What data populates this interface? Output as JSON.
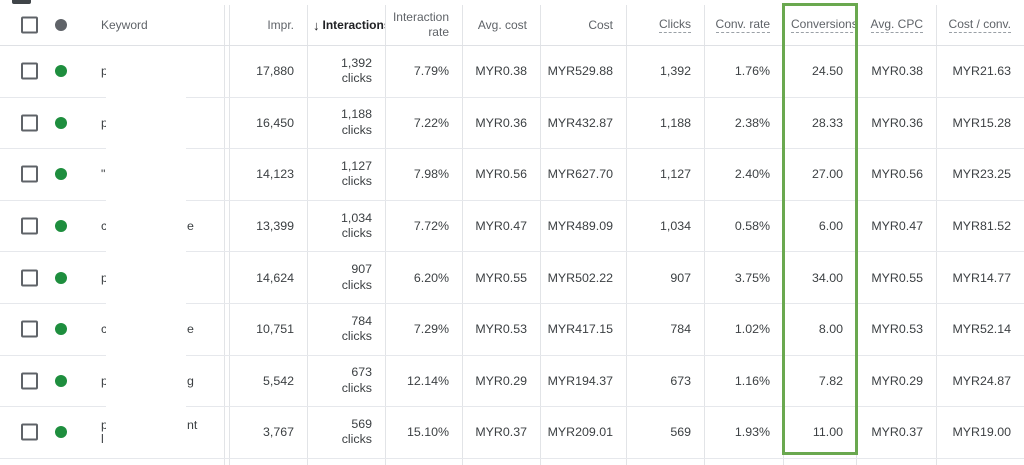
{
  "table": {
    "sorted_by": "Interactions",
    "sort_direction": "descending",
    "highlighted_column": "Conversions",
    "headers": {
      "keyword": "Keyword",
      "impressions": "Impr.",
      "sort_arrow": "↓",
      "interactions": "Interactions",
      "interaction_rate": "Interaction rate",
      "avg_cost": "Avg. cost",
      "cost": "Cost",
      "clicks": "Clicks",
      "conv_rate": "Conv. rate",
      "conversions": "Conversions",
      "avg_cpc": "Avg. CPC",
      "cost_per_conv": "Cost / conv."
    },
    "rows": [
      {
        "status": "enabled",
        "kw_left": "p",
        "kw_right": "",
        "impr": "17,880",
        "interactions": "1,392",
        "interactions_unit": "clicks",
        "inter_rate": "7.79%",
        "avg_cost": "MYR0.38",
        "cost": "MYR529.88",
        "clicks": "1,392",
        "conv_rate": "1.76%",
        "conversions": "24.50",
        "avg_cpc": "MYR0.38",
        "cost_conv": "MYR21.63"
      },
      {
        "status": "enabled",
        "kw_left": "p",
        "kw_right": "",
        "impr": "16,450",
        "interactions": "1,188",
        "interactions_unit": "clicks",
        "inter_rate": "7.22%",
        "avg_cost": "MYR0.36",
        "cost": "MYR432.87",
        "clicks": "1,188",
        "conv_rate": "2.38%",
        "conversions": "28.33",
        "avg_cpc": "MYR0.36",
        "cost_conv": "MYR15.28"
      },
      {
        "status": "enabled",
        "kw_left": "\"",
        "kw_right": "",
        "impr": "14,123",
        "interactions": "1,127",
        "interactions_unit": "clicks",
        "inter_rate": "7.98%",
        "avg_cost": "MYR0.56",
        "cost": "MYR627.70",
        "clicks": "1,127",
        "conv_rate": "2.40%",
        "conversions": "27.00",
        "avg_cpc": "MYR0.56",
        "cost_conv": "MYR23.25"
      },
      {
        "status": "enabled",
        "kw_left": "c",
        "kw_right": "e",
        "impr": "13,399",
        "interactions": "1,034",
        "interactions_unit": "clicks",
        "inter_rate": "7.72%",
        "avg_cost": "MYR0.47",
        "cost": "MYR489.09",
        "clicks": "1,034",
        "conv_rate": "0.58%",
        "conversions": "6.00",
        "avg_cpc": "MYR0.47",
        "cost_conv": "MYR81.52"
      },
      {
        "status": "enabled",
        "kw_left": "p",
        "kw_right": "",
        "impr": "14,624",
        "interactions": "907",
        "interactions_unit": "clicks",
        "inter_rate": "6.20%",
        "avg_cost": "MYR0.55",
        "cost": "MYR502.22",
        "clicks": "907",
        "conv_rate": "3.75%",
        "conversions": "34.00",
        "avg_cpc": "MYR0.55",
        "cost_conv": "MYR14.77"
      },
      {
        "status": "enabled",
        "kw_left": "c",
        "kw_right": "e",
        "impr": "10,751",
        "interactions": "784",
        "interactions_unit": "clicks",
        "inter_rate": "7.29%",
        "avg_cost": "MYR0.53",
        "cost": "MYR417.15",
        "clicks": "784",
        "conv_rate": "1.02%",
        "conversions": "8.00",
        "avg_cpc": "MYR0.53",
        "cost_conv": "MYR52.14"
      },
      {
        "status": "enabled",
        "kw_left": "p",
        "kw_right": "g",
        "impr": "5,542",
        "interactions": "673",
        "interactions_unit": "clicks",
        "inter_rate": "12.14%",
        "avg_cost": "MYR0.29",
        "cost": "MYR194.37",
        "clicks": "673",
        "conv_rate": "1.16%",
        "conversions": "7.82",
        "avg_cpc": "MYR0.29",
        "cost_conv": "MYR24.87"
      },
      {
        "status": "enabled",
        "kw_left": "p",
        "kw_right": "nt",
        "kw_line2": "l",
        "impr": "3,767",
        "interactions": "569",
        "interactions_unit": "clicks",
        "inter_rate": "15.10%",
        "avg_cost": "MYR0.37",
        "cost": "MYR209.01",
        "clicks": "569",
        "conv_rate": "1.93%",
        "conversions": "11.00",
        "avg_cpc": "MYR0.37",
        "cost_conv": "MYR19.00"
      }
    ]
  },
  "colors": {
    "status_enabled_dot": "#1e8e3e",
    "header_dot": "#5f6368",
    "highlight_box_border": "#6aa84f"
  }
}
